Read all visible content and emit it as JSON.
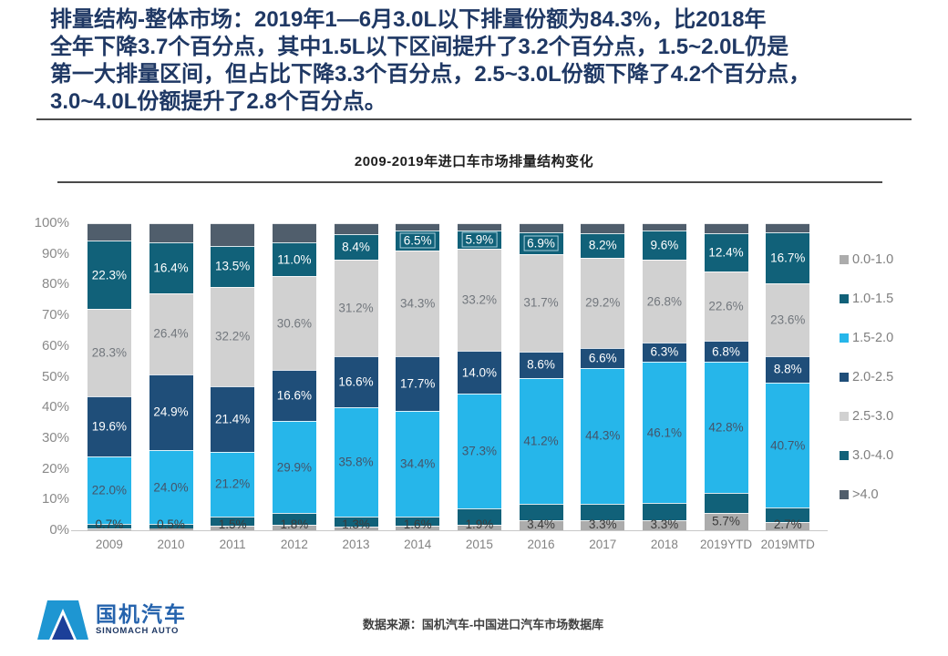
{
  "header": {
    "lines": [
      "排量结构-整体市场：2019年1—6月3.0L以下排量份额为84.3%，比2018年",
      "全年下降3.7个百分点，其中1.5L以下区间提升了3.2个百分点，1.5~2.0L仍是",
      "第一大排量区间，但占比下降3.3个百分点，2.5~3.0L份额下降了4.2个百分点，",
      "3.0~4.0L份额提升了2.8个百分点。"
    ],
    "accent_color": "#1F3864"
  },
  "chart_data": {
    "type": "bar",
    "variant": "stacked-100-percent",
    "title": "2009-2019年进口车市场排量结构变化",
    "categories": [
      "2009",
      "2010",
      "2011",
      "2012",
      "2013",
      "2014",
      "2015",
      "2016",
      "2017",
      "2018",
      "2019YTD",
      "2019MTD"
    ],
    "unit": "%",
    "ylim": [
      0,
      100
    ],
    "grid": false,
    "legend_position": "right",
    "y_ticks_top_to_bottom": [
      "100%",
      "90%",
      "80%",
      "70%",
      "60%",
      "50%",
      "40%",
      "30%",
      "20%",
      "10%",
      "0%"
    ],
    "series": [
      {
        "name": "0.0-1.0",
        "color": "#ACACAC",
        "label_color": "#3B3B3B",
        "show_labels": true,
        "values": [
          0.7,
          0.5,
          1.5,
          1.8,
          1.3,
          1.6,
          1.9,
          3.4,
          3.3,
          3.3,
          5.7,
          2.7
        ]
      },
      {
        "name": "1.0-1.5",
        "color": "#116179",
        "show_labels": false,
        "approx": true,
        "values": [
          1.4,
          1.5,
          2.9,
          3.8,
          3.1,
          3.0,
          5.2,
          5.1,
          5.3,
          5.5,
          6.4,
          4.6
        ]
      },
      {
        "name": "1.5-2.0",
        "color": "#26B6EA",
        "label_color": "#44546A",
        "show_labels": true,
        "values": [
          22.0,
          24.0,
          21.2,
          29.9,
          35.8,
          34.4,
          37.3,
          41.2,
          44.3,
          46.1,
          42.8,
          40.7
        ]
      },
      {
        "name": "2.0-2.5",
        "color": "#1F4E79",
        "label_color": "#FFFFFF",
        "show_labels": true,
        "values": [
          19.6,
          24.9,
          21.4,
          16.6,
          16.6,
          17.7,
          14.0,
          8.6,
          6.6,
          6.3,
          6.8,
          8.8
        ]
      },
      {
        "name": "2.5-3.0",
        "color": "#D1D1D1",
        "label_color": "#72777D",
        "show_labels": true,
        "values": [
          28.3,
          26.4,
          32.2,
          30.6,
          31.2,
          34.3,
          33.2,
          31.7,
          29.2,
          26.8,
          22.6,
          23.6
        ]
      },
      {
        "name": "3.0-4.0",
        "color": "#116179",
        "label_color": "#FFFFFF",
        "show_labels": true,
        "values": [
          22.3,
          16.4,
          13.5,
          11.0,
          8.4,
          6.5,
          5.9,
          6.9,
          8.2,
          9.6,
          12.4,
          16.7
        ]
      },
      {
        "name": ">4.0",
        "color": "#505E6C",
        "show_labels": false,
        "approx": true,
        "values": [
          5.7,
          6.3,
          7.3,
          6.3,
          3.6,
          2.5,
          2.5,
          3.1,
          3.1,
          2.4,
          3.3,
          2.9
        ]
      }
    ]
  },
  "footer": {
    "source": "数据来源：国机汽车-中国进口汽车市场数据库",
    "logo_cn": "国机汽车",
    "logo_en": "SINOMACH AUTO",
    "logo_light_blue": "#1E96D2",
    "logo_dark_blue": "#1C3F99"
  }
}
